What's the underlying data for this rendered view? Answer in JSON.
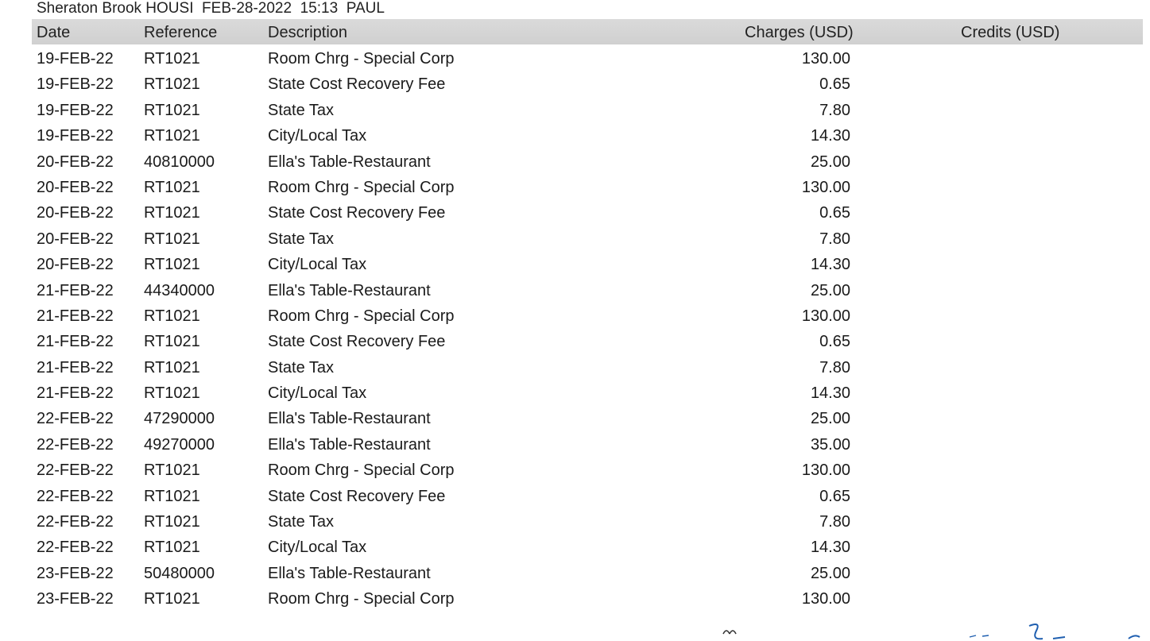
{
  "header": {
    "line": "Sheraton Brook HOUSI  FEB-28-2022  15:13  PAUL"
  },
  "columns": {
    "date": "Date",
    "reference": "Reference",
    "description": "Description",
    "charges": "Charges (USD)",
    "credits": "Credits (USD)"
  },
  "rows": [
    {
      "date": "19-FEB-22",
      "reference": "RT1021",
      "description": "Room Chrg - Special Corp",
      "charges": "130.00",
      "credits": ""
    },
    {
      "date": "19-FEB-22",
      "reference": "RT1021",
      "description": "State Cost Recovery Fee",
      "charges": "0.65",
      "credits": ""
    },
    {
      "date": "19-FEB-22",
      "reference": "RT1021",
      "description": "State Tax",
      "charges": "7.80",
      "credits": ""
    },
    {
      "date": "19-FEB-22",
      "reference": "RT1021",
      "description": "City/Local Tax",
      "charges": "14.30",
      "credits": ""
    },
    {
      "date": "20-FEB-22",
      "reference": "40810000",
      "description": "Ella's Table-Restaurant",
      "charges": "25.00",
      "credits": ""
    },
    {
      "date": "20-FEB-22",
      "reference": "RT1021",
      "description": "Room Chrg - Special Corp",
      "charges": "130.00",
      "credits": ""
    },
    {
      "date": "20-FEB-22",
      "reference": "RT1021",
      "description": "State Cost Recovery Fee",
      "charges": "0.65",
      "credits": ""
    },
    {
      "date": "20-FEB-22",
      "reference": "RT1021",
      "description": "State Tax",
      "charges": "7.80",
      "credits": ""
    },
    {
      "date": "20-FEB-22",
      "reference": "RT1021",
      "description": "City/Local Tax",
      "charges": "14.30",
      "credits": ""
    },
    {
      "date": "21-FEB-22",
      "reference": "44340000",
      "description": "Ella's Table-Restaurant",
      "charges": "25.00",
      "credits": ""
    },
    {
      "date": "21-FEB-22",
      "reference": "RT1021",
      "description": "Room Chrg - Special Corp",
      "charges": "130.00",
      "credits": ""
    },
    {
      "date": "21-FEB-22",
      "reference": "RT1021",
      "description": "State Cost Recovery Fee",
      "charges": "0.65",
      "credits": ""
    },
    {
      "date": "21-FEB-22",
      "reference": "RT1021",
      "description": "State Tax",
      "charges": "7.80",
      "credits": ""
    },
    {
      "date": "21-FEB-22",
      "reference": "RT1021",
      "description": "City/Local Tax",
      "charges": "14.30",
      "credits": ""
    },
    {
      "date": "22-FEB-22",
      "reference": "47290000",
      "description": "Ella's Table-Restaurant",
      "charges": "25.00",
      "credits": ""
    },
    {
      "date": "22-FEB-22",
      "reference": "49270000",
      "description": "Ella's Table-Restaurant",
      "charges": "35.00",
      "credits": ""
    },
    {
      "date": "22-FEB-22",
      "reference": "RT1021",
      "description": "Room Chrg - Special Corp",
      "charges": "130.00",
      "credits": ""
    },
    {
      "date": "22-FEB-22",
      "reference": "RT1021",
      "description": "State Cost Recovery Fee",
      "charges": "0.65",
      "credits": ""
    },
    {
      "date": "22-FEB-22",
      "reference": "RT1021",
      "description": "State Tax",
      "charges": "7.80",
      "credits": ""
    },
    {
      "date": "22-FEB-22",
      "reference": "RT1021",
      "description": "City/Local Tax",
      "charges": "14.30",
      "credits": ""
    },
    {
      "date": "23-FEB-22",
      "reference": "50480000",
      "description": "Ella's Table-Restaurant",
      "charges": "25.00",
      "credits": ""
    },
    {
      "date": "23-FEB-22",
      "reference": "RT1021",
      "description": "Room Chrg - Special Corp",
      "charges": "130.00",
      "credits": ""
    }
  ],
  "colors": {
    "header_bg": "#d6d6d6",
    "text": "#1a1a1a",
    "signature_ink": "#1f5fb0"
  }
}
